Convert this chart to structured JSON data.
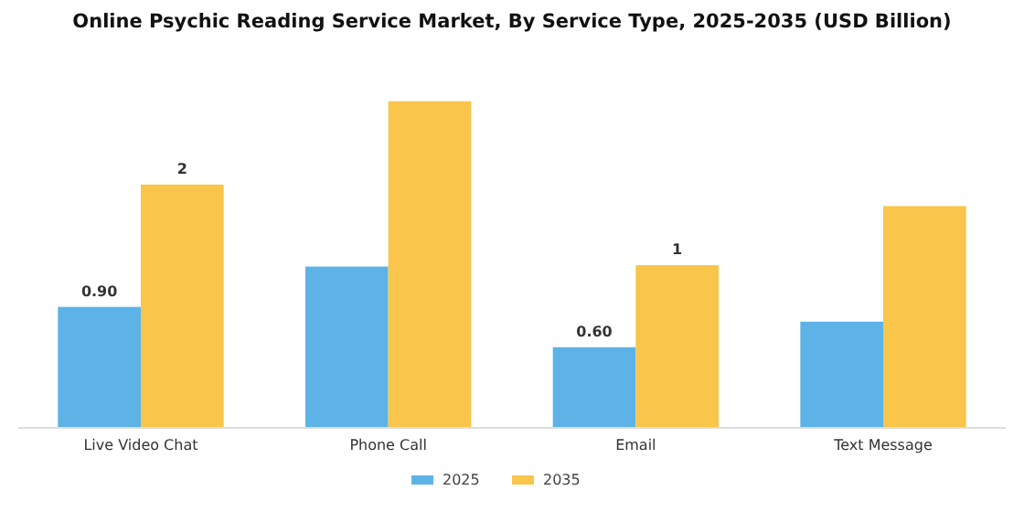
{
  "chart_data": {
    "type": "bar",
    "title": "Online Psychic Reading Service Market, By Service Type, 2025-2035 (USD Billion)",
    "categories": [
      "Live Video Chat",
      "Phone Call",
      "Email",
      "Text Message"
    ],
    "series": [
      {
        "name": "2025",
        "color": "#5db3e6",
        "values": [
          0.9,
          1.2,
          0.6,
          0.79
        ],
        "value_labels": [
          "0.90",
          null,
          "0.60",
          null
        ]
      },
      {
        "name": "2035",
        "color": "#f9c54a",
        "values": [
          1.81,
          2.43,
          1.21,
          1.65
        ],
        "value_labels": [
          "2",
          null,
          "1",
          null
        ]
      }
    ],
    "legend": "bottom",
    "grid": false
  }
}
